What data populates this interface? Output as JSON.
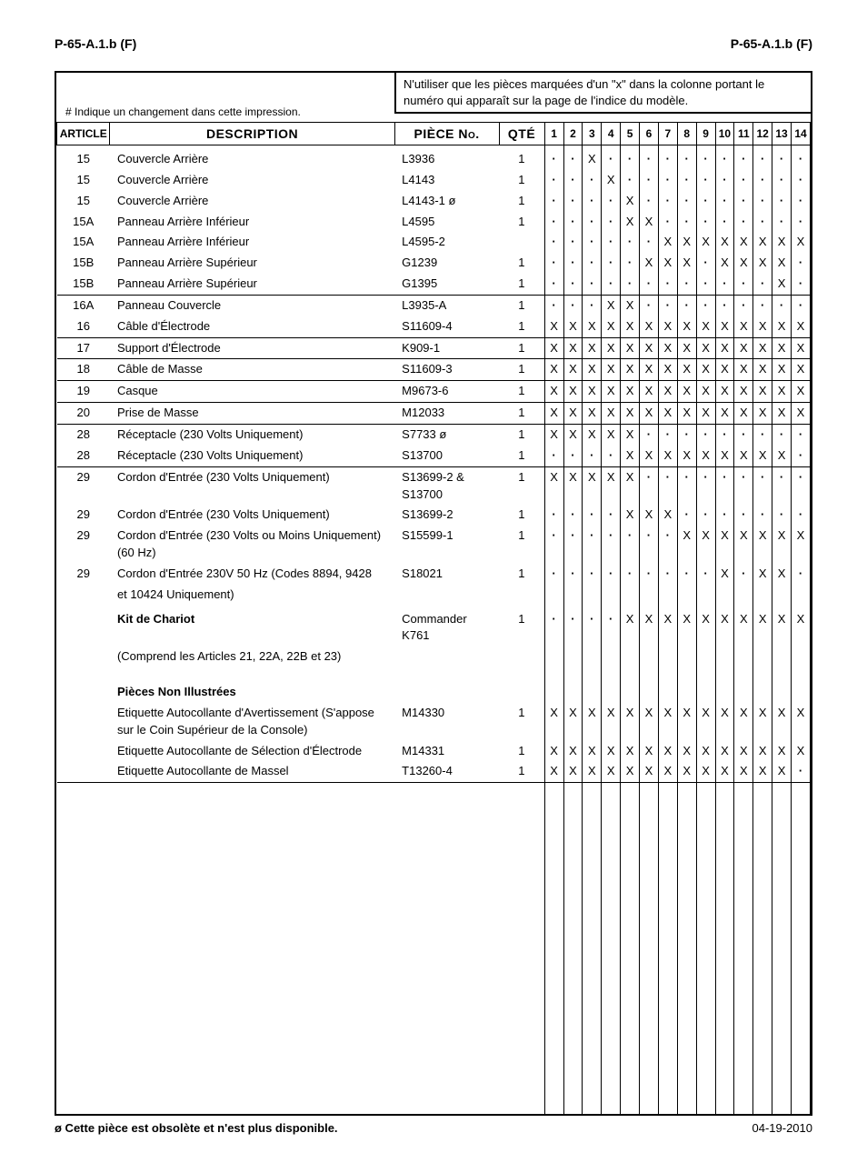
{
  "header": {
    "left": "P-65-A.1.b (F)",
    "right": "P-65-A.1.b (F)"
  },
  "note": "N'utiliser que les pièces marquées d'un \"x\" dans la colonne portant le numéro qui apparaît sur la page de l'indice du modèle.",
  "sharp": "# Indique un changement dans cette impression.",
  "columns": {
    "article": "ARTICLE",
    "description": "DESCRIPTION",
    "piece": "PIÈCE No.",
    "qte": "QTÉ"
  },
  "num_cols": 14,
  "rows": [
    {
      "a": "15",
      "d": "Couvercle Arrière",
      "p": "L3936",
      "q": "1",
      "m": "..X..........."
    },
    {
      "a": "15",
      "d": "Couvercle Arrière",
      "p": "L4143",
      "q": "1",
      "m": "...X.........."
    },
    {
      "a": "15",
      "d": "Couvercle Arrière",
      "p": "L4143-1 ø",
      "q": "1",
      "m": "....X........."
    },
    {
      "a": "15A",
      "d": "Panneau Arrière Inférieur",
      "p": "L4595",
      "q": "1",
      "m": "....XX........"
    },
    {
      "a": "15A",
      "d": "Panneau Arrière Inférieur",
      "p": "L4595-2",
      "q": "",
      "m": "......XXXXXXXX"
    },
    {
      "a": "15B",
      "d": "Panneau Arrière Supérieur",
      "p": "G1239",
      "q": "1",
      "m": ".....XXX.XXXX."
    },
    {
      "a": "15B",
      "d": "Panneau Arrière Supérieur",
      "p": "G1395",
      "q": "1",
      "m": "............X.",
      "hr": true
    },
    {
      "a": "16A",
      "d": "Panneau Couvercle",
      "p": "L3935-A",
      "q": "1",
      "m": "...XX.........",
      "hr": false
    },
    {
      "a": "16",
      "d": "Câble d'Électrode",
      "p": "S11609-4",
      "q": "1",
      "m": "XXXXXXXXXXXXXX",
      "hr": true,
      "tight": true
    },
    {
      "a": "17",
      "d": "Support d'Électrode",
      "p": "K909-1",
      "q": "1",
      "m": "XXXXXXXXXXXXXX",
      "hr": true
    },
    {
      "a": "18",
      "d": "Câble de Masse",
      "p": "S11609-3",
      "q": "1",
      "m": "XXXXXXXXXXXXXX",
      "hr": true
    },
    {
      "a": "19",
      "d": "Casque",
      "p": "M9673-6",
      "q": "1",
      "m": "XXXXXXXXXXXXXX",
      "hr": true
    },
    {
      "a": "20",
      "d": "Prise de Masse",
      "p": "M12033",
      "q": "1",
      "m": "XXXXXXXXXXXXXX",
      "hr": true
    },
    {
      "a": "28",
      "d": "Réceptacle (230 Volts Uniquement)",
      "p": "S7733 ø",
      "q": "1",
      "m": "XXXXX........."
    },
    {
      "a": "28",
      "d": "Réceptacle (230 Volts Uniquement)",
      "p": "S13700",
      "q": "1",
      "m": "....XXXXXXXXX."
    },
    {
      "a": "29",
      "d": "Cordon d'Entrée (230 Volts Uniquement)",
      "p": "S13699-2 & S13700",
      "q": "1",
      "m": "XXXXX.........",
      "psmall": true,
      "ht": true
    },
    {
      "a": "29",
      "d": "Cordon d'Entrée (230 Volts Uniquement)",
      "p": "S13699-2",
      "q": "1",
      "m": "....XXX......."
    },
    {
      "a": "29",
      "d": "Cordon d'Entrée (230 Volts ou Moins Uniquement) (60 Hz)",
      "p": "S15599-1",
      "q": "1",
      "m": ".......XXXXXXX",
      "dsmall": true
    },
    {
      "a": "29",
      "d": "Cordon d'Entrée 230V 50 Hz (Codes 8894, 9428",
      "p": "S18021",
      "q": "1",
      "m": ".........X.XX."
    },
    {
      "a": "",
      "d": "et 10424 Uniquement)",
      "p": "",
      "q": "",
      "m": "              "
    }
  ],
  "kit": {
    "title": "Kit de Chariot",
    "sub": "(Comprend les Articles 21, 22A, 22B et 23)",
    "p": "Commander K761",
    "q": "1",
    "m": "....XXXXXXXXXX"
  },
  "nonill": {
    "title": "Pièces Non Illustrées",
    "rows": [
      {
        "d": "Etiquette Autocollante d'Avertissement (S'appose sur le Coin Supérieur de la Console)",
        "p": "M14330",
        "q": "1",
        "m": "XXXXXXXXXXXXXX",
        "dsmall": true
      },
      {
        "d": "Etiquette Autocollante de Sélection d'Électrode",
        "p": "M14331",
        "q": "1",
        "m": "XXXXXXXXXXXXXX"
      },
      {
        "d": "Etiquette Autocollante de Massel",
        "p": "T13260-4",
        "q": "1",
        "m": "XXXXXXXXXXXXX.",
        "hr": true
      }
    ]
  },
  "footer": {
    "obs": "ø Cette pièce est obsolète et n'est plus disponible.",
    "date": "04-19-2010"
  }
}
